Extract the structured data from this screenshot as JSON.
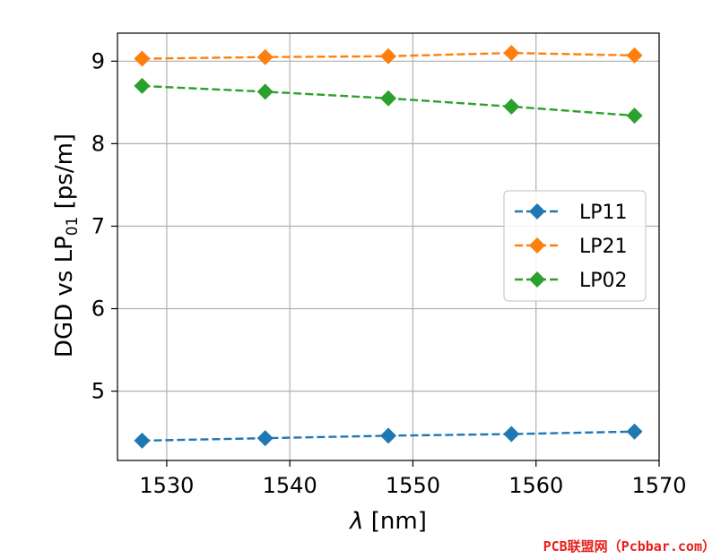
{
  "chart_data": {
    "type": "line",
    "title": "",
    "xlabel_symbol": "λ",
    "xlabel_unit": " [nm]",
    "ylabel_main": "DGD vs LP",
    "ylabel_sub": "01",
    "ylabel_unit": " [ps/m]",
    "xlim": [
      1526,
      1570
    ],
    "ylim": [
      4.16,
      9.34
    ],
    "x_ticks": [
      1530,
      1540,
      1550,
      1560,
      1570
    ],
    "y_ticks": [
      5,
      6,
      7,
      8,
      9
    ],
    "grid": true,
    "legend_position": "center-right",
    "x": [
      1528,
      1538,
      1548,
      1558,
      1568
    ],
    "series": [
      {
        "name": "LP11",
        "color": "#1f77b4",
        "values": [
          4.4,
          4.43,
          4.46,
          4.48,
          4.51
        ]
      },
      {
        "name": "LP21",
        "color": "#ff7f0e",
        "values": [
          9.03,
          9.05,
          9.06,
          9.1,
          9.07
        ]
      },
      {
        "name": "LP02",
        "color": "#2ca02c",
        "values": [
          8.7,
          8.63,
          8.55,
          8.45,
          8.34
        ]
      }
    ]
  },
  "watermark": "PCB联盟网（Pcbbar.com）"
}
